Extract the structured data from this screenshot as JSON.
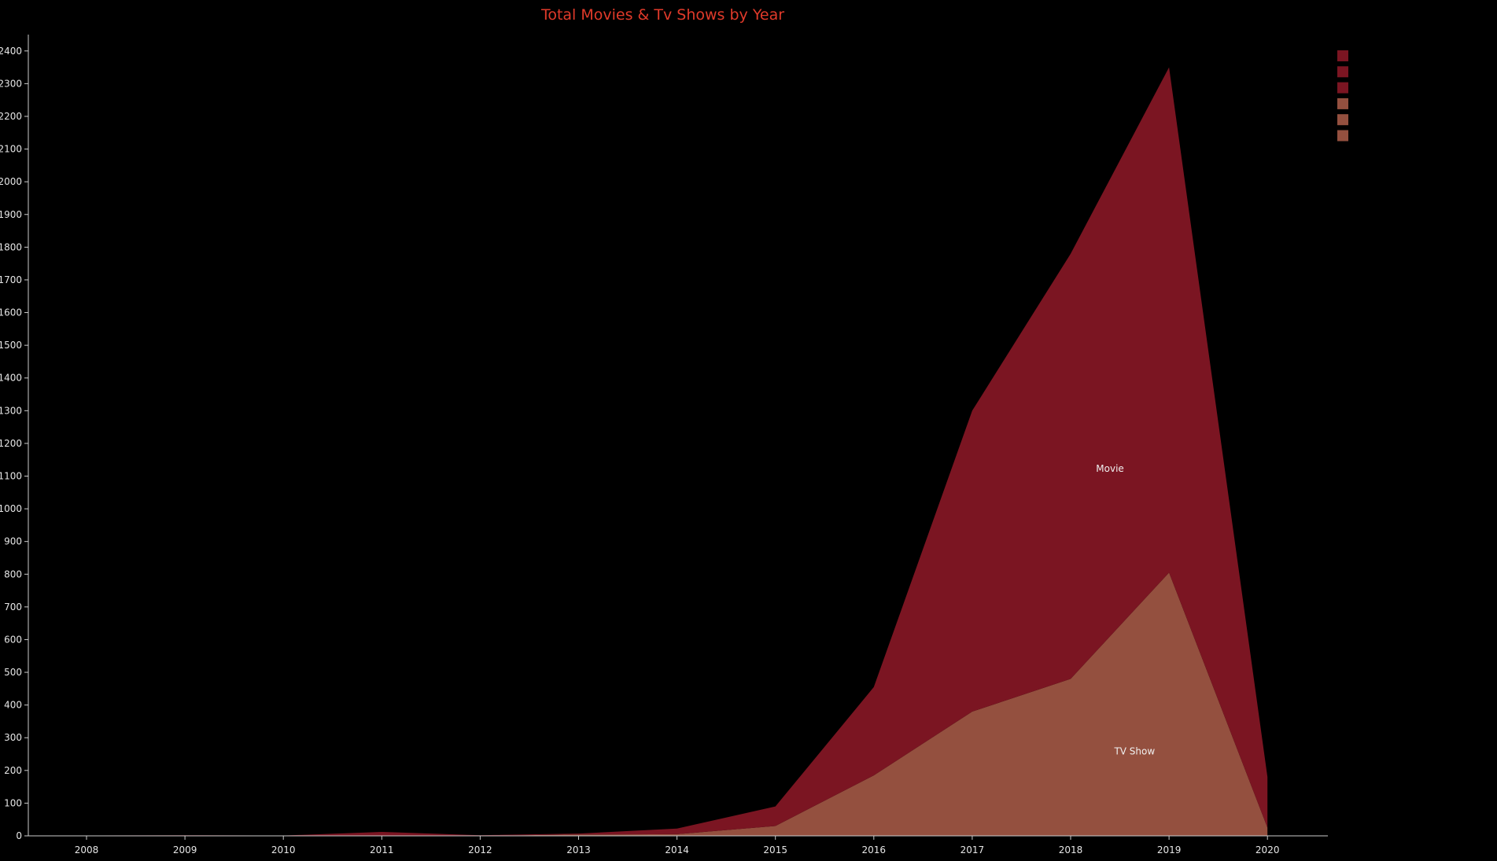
{
  "chart_data": {
    "type": "area",
    "stacked": true,
    "title": "Total Movies & Tv Shows by Year",
    "xlabel": "",
    "ylabel": "",
    "x": [
      "2008",
      "2009",
      "2010",
      "2011",
      "2012",
      "2013",
      "2014",
      "2015",
      "2016",
      "2017",
      "2018",
      "2019",
      "2020"
    ],
    "ylim": [
      0,
      2450
    ],
    "yticks": [
      0,
      100,
      200,
      300,
      400,
      500,
      600,
      700,
      800,
      900,
      1000,
      1100,
      1200,
      1300,
      1400,
      1500,
      1600,
      1700,
      1800,
      1900,
      2000,
      2100,
      2200,
      2300,
      2400
    ],
    "grid": false,
    "legend": "top-right",
    "series": [
      {
        "name": "TV Show",
        "color": "#94503f",
        "values": [
          0,
          0,
          0,
          1,
          0,
          4,
          5,
          30,
          185,
          380,
          480,
          805,
          25
        ]
      },
      {
        "name": "Movie",
        "color": "#7b1522",
        "values": [
          1,
          2,
          1,
          11,
          2,
          3,
          17,
          60,
          270,
          920,
          1300,
          1545,
          155
        ]
      }
    ],
    "legend_swatches": [
      "#7b1522",
      "#7b1522",
      "#7b1522",
      "#94503f",
      "#94503f",
      "#94503f"
    ]
  }
}
